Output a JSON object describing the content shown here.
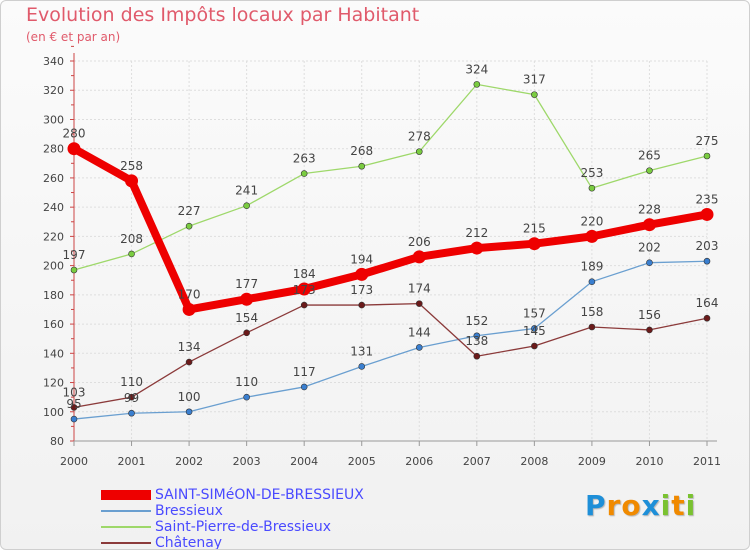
{
  "chart_data": {
    "type": "line",
    "title": "Evolution des Impôts locaux par Habitant",
    "subtitle": "(en € et par an)",
    "xlabel": "",
    "ylabel": "",
    "categories": [
      "2000",
      "2001",
      "2002",
      "2003",
      "2004",
      "2005",
      "2006",
      "2007",
      "2008",
      "2009",
      "2010",
      "2011"
    ],
    "ylim": [
      80,
      340
    ],
    "yticks": [
      "80",
      "100",
      "120",
      "140",
      "160",
      "180",
      "200",
      "220",
      "240",
      "260",
      "280",
      "300",
      "320",
      "340"
    ],
    "legend_position": "bottom-left",
    "series": [
      {
        "name": "Bressieux",
        "color": "#6a9fd0",
        "point_color": "#3a7fd0",
        "values": [
          95,
          99,
          100,
          110,
          117,
          131,
          144,
          152,
          157,
          189,
          202,
          203
        ],
        "labels": [
          "95",
          "99",
          "100",
          "110",
          "117",
          "131",
          "144",
          "152",
          "157",
          "189",
          "202",
          "203"
        ]
      },
      {
        "name": "Saint-Pierre-de-Bressieux",
        "color": "#9ed86a",
        "point_color": "#7acc40",
        "values": [
          197,
          208,
          227,
          241,
          263,
          268,
          278,
          324,
          317,
          253,
          265,
          275
        ],
        "labels": [
          "197",
          "208",
          "227",
          "241",
          "263",
          "268",
          "278",
          "324",
          "317",
          "253",
          "265",
          "275"
        ]
      },
      {
        "name": "Châtenay",
        "color": "#8b3a3a",
        "point_color": "#6b1a1a",
        "values": [
          103,
          110,
          134,
          154,
          173,
          173,
          174,
          138,
          145,
          158,
          156,
          164
        ],
        "labels": [
          "103",
          "110",
          "134",
          "154",
          "173",
          "173",
          "174",
          "138",
          "145",
          "158",
          "156",
          "164"
        ]
      },
      {
        "name": "SAINT-SIMéON-DE-BRESSIEUX",
        "color": "#ee0000",
        "point_color": "#ee0000",
        "values": [
          280,
          258,
          170,
          177,
          184,
          194,
          206,
          212,
          215,
          220,
          228,
          235
        ],
        "labels": [
          "280",
          "258",
          "170",
          "177",
          "184",
          "194",
          "206",
          "212",
          "215",
          "220",
          "228",
          "235"
        ]
      }
    ],
    "legend": [
      "SAINT-SIMéON-DE-BRESSIEUX",
      "Bressieux",
      "Saint-Pierre-de-Bressieux",
      "Châtenay"
    ]
  },
  "logo": {
    "letters": [
      {
        "ch": "P",
        "color": "#1e8fd8"
      },
      {
        "ch": "r",
        "color": "#f08a00"
      },
      {
        "ch": "o",
        "color": "#f08a00"
      },
      {
        "ch": "x",
        "color": "#1e8fd8"
      },
      {
        "ch": "i",
        "color": "#7ac230"
      },
      {
        "ch": "t",
        "color": "#f08a00"
      },
      {
        "ch": "i",
        "color": "#7ac230"
      }
    ]
  }
}
